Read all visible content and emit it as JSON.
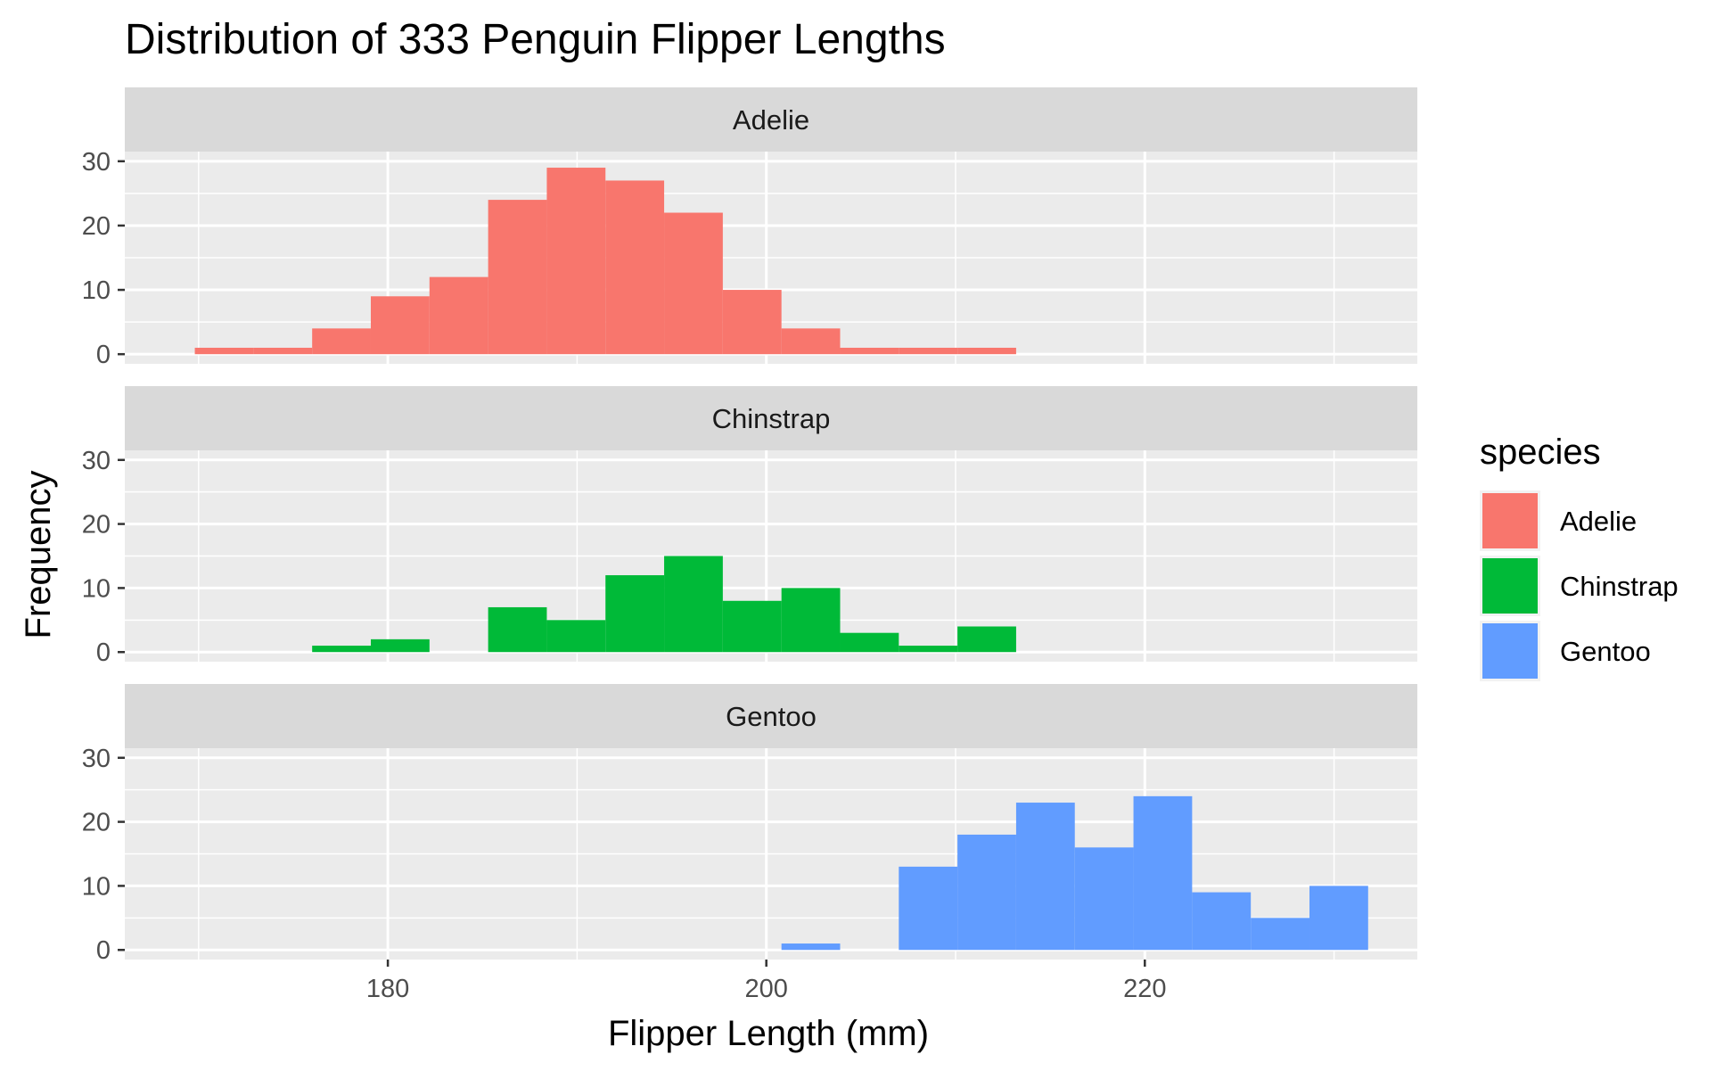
{
  "chart_data": {
    "type": "bar",
    "title": "Distribution of 333 Penguin Flipper Lengths",
    "xlabel": "Flipper Length (mm)",
    "ylabel": "Frequency",
    "xlim": [
      166.1,
      234.4
    ],
    "ylim": [
      -1.5,
      31.5
    ],
    "xticks": [
      {
        "value": 180,
        "label": "180"
      },
      {
        "value": 200,
        "label": "200"
      },
      {
        "value": 220,
        "label": "220"
      }
    ],
    "yticks": [
      {
        "value": 0,
        "label": "0"
      },
      {
        "value": 10,
        "label": "10"
      },
      {
        "value": 20,
        "label": "20"
      },
      {
        "value": 30,
        "label": "30"
      }
    ],
    "bin_start": 169.8,
    "bin_width": 3.1,
    "grid": true,
    "legend": {
      "title": "species",
      "position": "right"
    },
    "series": [
      {
        "name": "Adelie",
        "color": "#F8766D",
        "values": [
          1,
          1,
          4,
          9,
          12,
          24,
          29,
          27,
          22,
          10,
          4,
          1,
          1,
          1,
          0,
          0,
          0,
          0,
          0,
          0,
          0,
          0
        ]
      },
      {
        "name": "Chinstrap",
        "color": "#00BA38",
        "values": [
          0,
          0,
          1,
          2,
          0,
          7,
          5,
          12,
          15,
          8,
          10,
          3,
          1,
          4,
          0,
          0,
          0,
          0,
          0,
          0,
          0,
          0
        ]
      },
      {
        "name": "Gentoo",
        "color": "#619CFF",
        "values": [
          0,
          0,
          0,
          0,
          0,
          0,
          0,
          0,
          0,
          0,
          1,
          0,
          13,
          18,
          23,
          16,
          24,
          9,
          5,
          10,
          0,
          0
        ]
      }
    ]
  }
}
